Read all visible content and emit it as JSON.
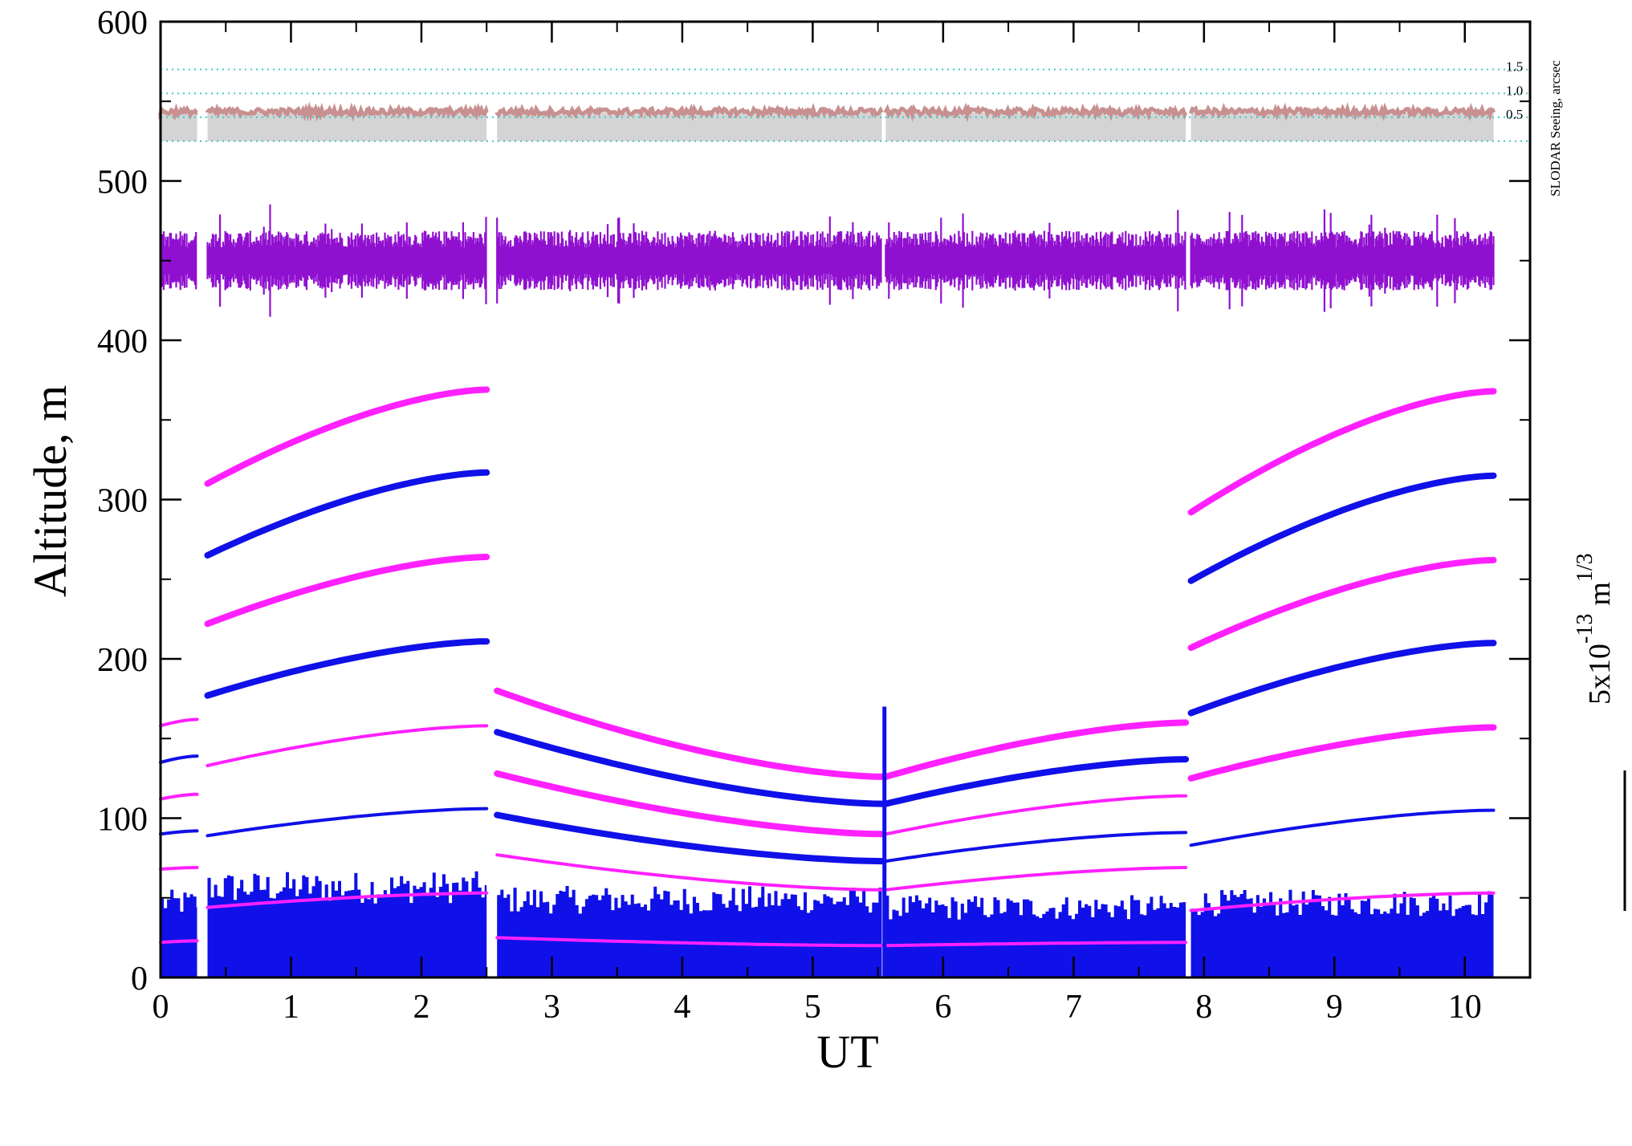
{
  "chart_data": {
    "type": "scatter",
    "xlabel": "UT",
    "ylabel": "Altitude, m",
    "xlim": [
      0,
      10.5
    ],
    "ylim": [
      0,
      600
    ],
    "xticks": [
      "0",
      "1",
      "2",
      "3",
      "4",
      "5",
      "6",
      "7",
      "8",
      "9",
      "10"
    ],
    "yticks": [
      "0",
      "100",
      "200",
      "300",
      "400",
      "500",
      "600"
    ],
    "seeing_axis": {
      "label": "SLODAR Seeing, arcsec",
      "ticks": [
        "0.5",
        "1.0",
        "1.5"
      ],
      "reference_altitudes_m": [
        525,
        540,
        555,
        570
      ]
    },
    "scale_bar_label": {
      "text": "5x10",
      "exponent": "-13",
      "unit": "m",
      "unit_exponent": "1/3"
    },
    "segments": [
      [
        0.0,
        0.28
      ],
      [
        0.36,
        2.5
      ],
      [
        2.58,
        5.53
      ],
      [
        5.56,
        7.86
      ],
      [
        7.9,
        10.22
      ]
    ],
    "colors": {
      "magenta": "#ff20ff",
      "blue": "#1010e8",
      "purple": "#9010d0",
      "seeing_pink": "#c89090",
      "seeing_gray": "#d4d4d4",
      "reference_line": "#40c8c8"
    },
    "series": [
      {
        "color": "magenta",
        "segments": [
          [
            0.0,
            0.28,
            158,
            162
          ],
          [
            0.36,
            2.5,
            310,
            369
          ],
          [
            7.9,
            10.22,
            292,
            368
          ]
        ]
      },
      {
        "color": "blue",
        "segments": [
          [
            0.0,
            0.28,
            135,
            139
          ],
          [
            0.36,
            2.5,
            265,
            317
          ],
          [
            7.9,
            10.22,
            249,
            315
          ]
        ]
      },
      {
        "color": "magenta",
        "segments": [
          [
            0.0,
            0.28,
            112,
            115
          ],
          [
            0.36,
            2.5,
            222,
            264
          ],
          [
            7.9,
            10.22,
            207,
            262
          ]
        ]
      },
      {
        "color": "blue",
        "segments": [
          [
            0.0,
            0.28,
            90,
            92
          ],
          [
            0.36,
            2.5,
            177,
            211
          ],
          [
            7.9,
            10.22,
            166,
            210
          ]
        ]
      },
      {
        "color": "magenta",
        "segments": [
          [
            0.0,
            0.28,
            68,
            69
          ],
          [
            0.36,
            2.5,
            133,
            158
          ],
          [
            2.58,
            5.53,
            180,
            126
          ],
          [
            5.56,
            7.86,
            126,
            160
          ],
          [
            7.9,
            10.22,
            125,
            157
          ]
        ]
      },
      {
        "color": "blue",
        "segments": [
          [
            0.36,
            2.5,
            89,
            106
          ],
          [
            2.58,
            5.53,
            154,
            109
          ],
          [
            5.56,
            7.86,
            109,
            137
          ],
          [
            7.9,
            10.22,
            83,
            105
          ]
        ]
      },
      {
        "color": "magenta",
        "segments": [
          [
            0.0,
            0.28,
            22,
            23
          ],
          [
            0.36,
            2.5,
            44,
            53
          ],
          [
            2.58,
            5.53,
            128,
            90
          ],
          [
            5.56,
            7.86,
            90,
            114
          ],
          [
            7.9,
            10.22,
            42,
            53
          ]
        ]
      },
      {
        "color": "blue",
        "segments": [
          [
            2.58,
            5.53,
            102,
            73
          ],
          [
            5.56,
            7.86,
            73,
            91
          ]
        ]
      },
      {
        "color": "magenta",
        "segments": [
          [
            2.58,
            5.53,
            77,
            55
          ],
          [
            5.56,
            7.86,
            55,
            69
          ]
        ]
      },
      {
        "color": "magenta",
        "segments": [
          [
            2.58,
            5.53,
            25,
            20
          ],
          [
            5.56,
            7.86,
            20,
            22
          ]
        ]
      }
    ],
    "ground_layer_bars": {
      "color": "blue",
      "segments": [
        [
          0.0,
          0.28,
          48
        ],
        [
          0.36,
          2.5,
          58
        ],
        [
          2.58,
          5.53,
          50
        ],
        [
          5.56,
          7.86,
          45
        ],
        [
          7.9,
          10.22,
          48
        ]
      ]
    },
    "upper_turbulence_band": {
      "color": "purple",
      "center_m": 450,
      "half_spread_m": 15
    },
    "seeing_band": {
      "base_m": 525,
      "top_m": 543
    }
  }
}
